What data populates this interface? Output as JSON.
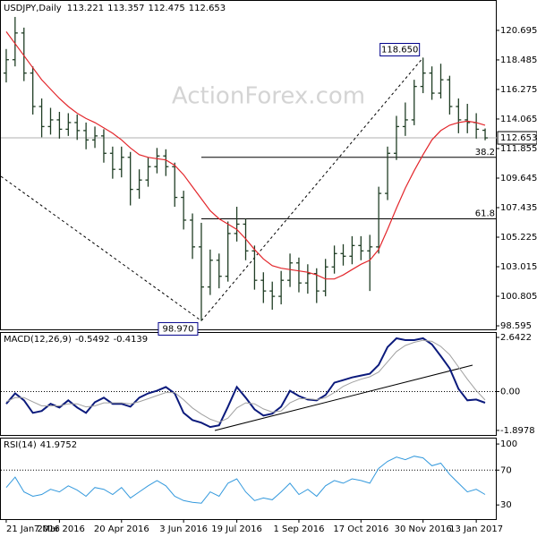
{
  "chart_data": [
    {
      "type": "ohlc",
      "title": "USDJPY,Daily",
      "watermark": "ActionForex.com",
      "color": "#1f3d24",
      "categories": [
        "21 Jan 2016",
        null,
        null,
        null,
        null,
        null,
        "7 Mar 2016",
        null,
        null,
        null,
        null,
        null,
        null,
        "20 Apr 2016",
        null,
        null,
        null,
        null,
        null,
        null,
        "3 Jun 2016",
        null,
        null,
        null,
        null,
        null,
        "19 Jul 2016",
        null,
        null,
        null,
        null,
        null,
        null,
        "1 Sep 2016",
        null,
        null,
        null,
        null,
        null,
        null,
        "17 Oct 2016",
        null,
        null,
        null,
        null,
        null,
        null,
        "30 Nov 2016",
        null,
        null,
        null,
        null,
        null,
        "13 Jan 2017",
        null
      ],
      "open": [
        117.5,
        118.5,
        120.5,
        117.5,
        115.0,
        113.5,
        114.0,
        113.3,
        113.8,
        113.2,
        112.5,
        112.8,
        111.5,
        110.3,
        111.2,
        108.8,
        109.5,
        110.5,
        111.3,
        110.5,
        108.2,
        106.5,
        104.5,
        101.5,
        103.5,
        102.3,
        105.5,
        106.2,
        104.2,
        102.0,
        101.2,
        100.8,
        102.0,
        103.3,
        101.8,
        102.5,
        101.2,
        103.0,
        104.0,
        103.8,
        104.6,
        104.2,
        104.5,
        108.5,
        111.5,
        113.5,
        114.0,
        116.5,
        117.5,
        116.0,
        117.0,
        115.0,
        114.0,
        113.8,
        113.221
      ],
      "high": [
        119.3,
        121.7,
        120.9,
        118.0,
        115.6,
        114.9,
        114.6,
        114.5,
        114.4,
        113.8,
        113.5,
        113.3,
        112.0,
        112.0,
        111.6,
        110.3,
        111.2,
        111.9,
        111.8,
        110.8,
        108.7,
        107.0,
        106.3,
        104.3,
        104.0,
        106.4,
        107.5,
        106.6,
        104.6,
        102.6,
        101.9,
        102.7,
        104.0,
        103.7,
        103.2,
        102.9,
        103.6,
        104.6,
        104.7,
        105.3,
        105.3,
        105.4,
        109.0,
        112.0,
        114.3,
        115.3,
        117.0,
        118.65,
        118.0,
        118.2,
        117.3,
        115.6,
        115.2,
        114.5,
        113.357
      ],
      "low": [
        116.8,
        118.0,
        116.9,
        114.4,
        112.7,
        112.9,
        112.6,
        112.8,
        112.5,
        111.8,
        111.9,
        110.8,
        109.6,
        109.7,
        107.6,
        108.1,
        109.0,
        110.0,
        109.8,
        107.5,
        105.8,
        103.6,
        98.97,
        100.9,
        101.4,
        101.9,
        104.9,
        103.5,
        101.3,
        100.3,
        99.8,
        100.2,
        101.5,
        101.1,
        101.0,
        100.3,
        100.8,
        102.5,
        103.1,
        103.2,
        103.5,
        101.2,
        104.0,
        108.0,
        111.0,
        112.8,
        113.6,
        116.0,
        115.5,
        115.6,
        114.4,
        113.0,
        113.0,
        112.6,
        112.475
      ],
      "close": [
        118.5,
        120.5,
        117.5,
        115.0,
        113.5,
        114.0,
        113.3,
        113.8,
        113.2,
        112.5,
        112.8,
        111.5,
        110.3,
        111.2,
        108.8,
        109.5,
        110.5,
        111.3,
        110.5,
        108.2,
        106.5,
        104.5,
        101.5,
        103.5,
        102.3,
        105.5,
        106.2,
        104.2,
        102.0,
        101.2,
        100.8,
        102.0,
        103.3,
        101.8,
        102.5,
        101.2,
        103.0,
        104.0,
        103.8,
        104.6,
        104.2,
        104.5,
        108.5,
        111.5,
        113.5,
        114.0,
        116.5,
        117.5,
        116.0,
        117.0,
        115.0,
        114.0,
        113.8,
        113.3,
        112.653
      ],
      "moving_average": {
        "color": "#e3262b",
        "values": [
          120.6,
          119.7,
          118.8,
          117.9,
          117.0,
          116.3,
          115.6,
          115.0,
          114.5,
          114.1,
          113.8,
          113.4,
          113.0,
          112.5,
          111.9,
          111.4,
          111.2,
          111.1,
          111.0,
          110.6,
          109.9,
          109.0,
          108.1,
          107.2,
          106.6,
          106.2,
          105.8,
          105.1,
          104.3,
          103.6,
          103.1,
          102.9,
          102.8,
          102.7,
          102.6,
          102.4,
          102.1,
          102.1,
          102.4,
          102.8,
          103.2,
          103.5,
          104.3,
          105.8,
          107.4,
          108.9,
          110.2,
          111.4,
          112.5,
          113.2,
          113.6,
          113.8,
          113.9,
          113.8,
          113.6
        ]
      },
      "annotations": [
        {
          "value": 118.65,
          "label": "118.650"
        },
        {
          "value": 98.97,
          "label": "98.970"
        }
      ],
      "fib_levels": [
        {
          "value": 111.2,
          "label": "38.2"
        },
        {
          "value": 106.6,
          "label": "61.8"
        }
      ],
      "ylim": [
        98.33,
        122.9
      ],
      "yticks": [
        98.595,
        100.805,
        103.015,
        105.225,
        107.435,
        109.645,
        111.855,
        114.065,
        116.275,
        118.485,
        120.695
      ]
    },
    {
      "type": "line",
      "title": "MACD(12,26,9)",
      "grid": true,
      "series": [
        {
          "color": "#0b1a7c",
          "values": [
            -0.6,
            -0.09,
            -0.43,
            -1.04,
            -0.95,
            -0.6,
            -0.78,
            -0.43,
            -0.78,
            -1.04,
            -0.52,
            -0.3,
            -0.6,
            -0.6,
            -0.74,
            -0.3,
            -0.09,
            0.04,
            0.22,
            -0.09,
            -1.04,
            -1.39,
            -1.52,
            -1.73,
            -1.65,
            -0.74,
            0.22,
            -0.3,
            -0.87,
            -1.17,
            -1.08,
            -0.74,
            0.04,
            -0.22,
            -0.39,
            -0.43,
            -0.17,
            0.43,
            0.56,
            0.69,
            0.78,
            0.87,
            1.3,
            2.17,
            2.6,
            2.51,
            2.51,
            2.6,
            2.3,
            1.73,
            1.13,
            0.13,
            -0.43,
            -0.39,
            -0.5492
          ]
        },
        {
          "color": "#a0a0a0",
          "values": [
            -0.5,
            -0.3,
            -0.3,
            -0.5,
            -0.7,
            -0.7,
            -0.7,
            -0.6,
            -0.6,
            -0.75,
            -0.7,
            -0.55,
            -0.55,
            -0.55,
            -0.6,
            -0.5,
            -0.35,
            -0.2,
            -0.05,
            -0.05,
            -0.4,
            -0.8,
            -1.1,
            -1.35,
            -1.5,
            -1.3,
            -0.8,
            -0.55,
            -0.6,
            -0.85,
            -1.0,
            -0.95,
            -0.55,
            -0.35,
            -0.35,
            -0.4,
            -0.3,
            -0.05,
            0.25,
            0.45,
            0.6,
            0.72,
            0.95,
            1.45,
            1.95,
            2.25,
            2.4,
            2.5,
            2.45,
            2.2,
            1.8,
            1.2,
            0.6,
            0.05,
            -0.4139
          ]
        }
      ],
      "ylim": [
        -2.12,
        2.86
      ],
      "yticks": [
        2.6422,
        {
          "value": 0,
          "label": "0.00"
        },
        -1.8978
      ]
    },
    {
      "type": "line",
      "title": "RSI(14)",
      "grid": true,
      "series": [
        {
          "color": "#3399dd",
          "values": [
            50,
            62,
            45,
            40,
            42,
            48,
            45,
            52,
            47,
            40,
            50,
            48,
            42,
            50,
            38,
            45,
            52,
            58,
            52,
            40,
            35,
            33,
            32,
            45,
            40,
            55,
            60,
            45,
            35,
            38,
            36,
            45,
            55,
            42,
            48,
            40,
            52,
            58,
            55,
            60,
            58,
            55,
            72,
            80,
            85,
            82,
            86,
            84,
            75,
            78,
            65,
            55,
            45,
            48,
            41.9752
          ]
        }
      ],
      "ylim": [
        13.75,
        106.25
      ],
      "yticks": [
        100,
        70,
        30
      ]
    }
  ]
}
